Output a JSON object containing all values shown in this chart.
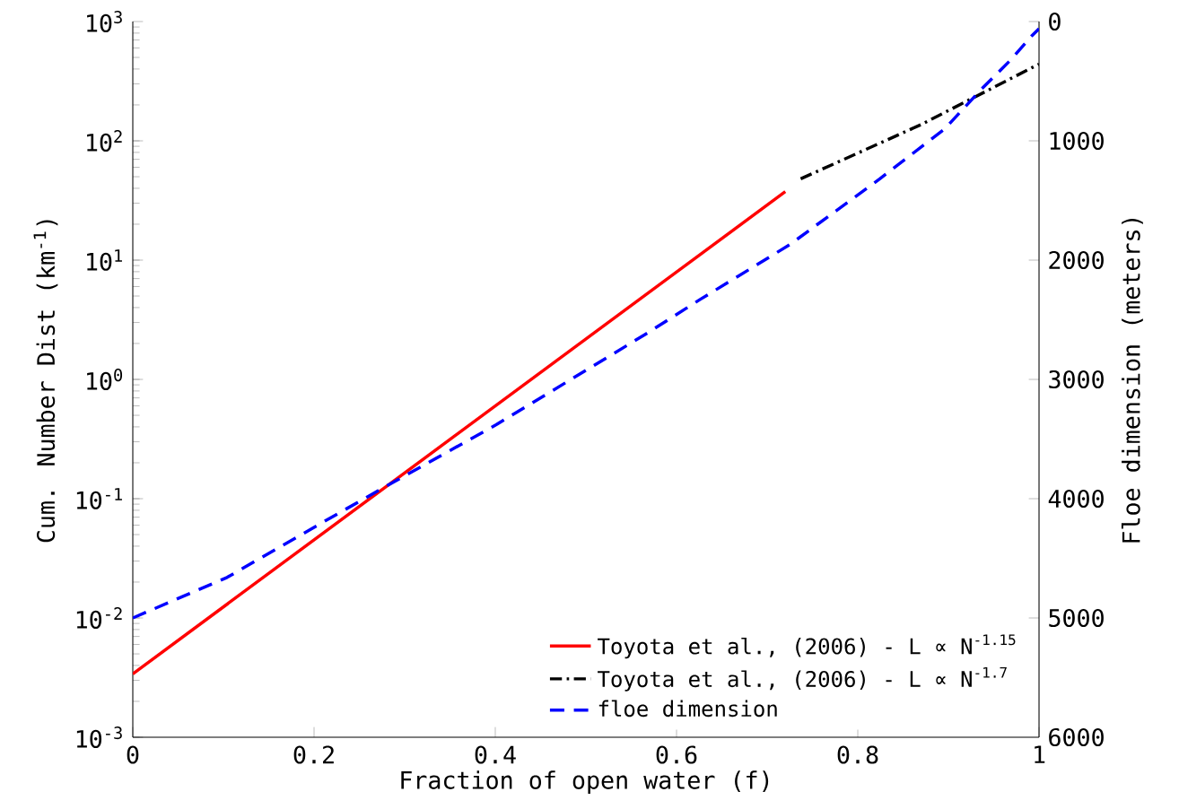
{
  "chart_data": {
    "type": "line",
    "xlabel": "Fraction of open water (f)",
    "ylabel": "Cum. Number Dist (km$^{-1}$)",
    "y2label": "Floe dimension (meters)",
    "log": "y",
    "xlim": [
      0,
      1
    ],
    "xticks": [
      0,
      0.2,
      0.4,
      0.6,
      0.8,
      1
    ],
    "ylim": [
      0.001,
      1000
    ],
    "yticks": [
      {
        "value": 0.001,
        "label": "10$^{-3}$"
      },
      {
        "value": 0.01,
        "label": "10$^{-2}$"
      },
      {
        "value": 0.1,
        "label": "10$^{-1}$"
      },
      {
        "value": 1,
        "label": "10$^{0}$"
      },
      {
        "value": 10,
        "label": "10$^{1}$"
      },
      {
        "value": 100,
        "label": "10$^{2}$"
      },
      {
        "value": 1000,
        "label": "10$^{3}$"
      }
    ],
    "y2lim": [
      6000,
      0
    ],
    "y2ticks": [
      0,
      1000,
      2000,
      3000,
      4000,
      5000,
      6000
    ],
    "legend": "bottom right",
    "grid": false,
    "series": [
      {
        "name": "Toyota et al., (2006) - L ∝ N$^{-1.15}$",
        "color": "#ff0000",
        "line_style": "solid",
        "axis": "y",
        "x": [
          0,
          0.72
        ],
        "values": [
          0.0034,
          37.5
        ]
      },
      {
        "name": "Toyota et al., (2006) - L ∝ N$^{-1.7}$",
        "color": "#000000",
        "line_style": "dashdot",
        "axis": "y",
        "x": [
          0.737,
          0.87,
          1
        ],
        "values": [
          48,
          137,
          440
        ]
      },
      {
        "name": "floe dimension",
        "color": "#0000ff",
        "line_style": "dashed",
        "axis": "y2",
        "x": [
          0,
          0.104,
          0.2,
          0.276,
          0.401,
          0.527,
          0.566,
          0.626,
          0.725,
          0.824,
          0.896,
          0.936,
          0.969,
          0.992,
          1
        ],
        "values": [
          5000,
          4660,
          4240,
          3910,
          3380,
          2800,
          2620,
          2330,
          1870,
          1320,
          900,
          570,
          320,
          120,
          60
        ]
      }
    ]
  }
}
